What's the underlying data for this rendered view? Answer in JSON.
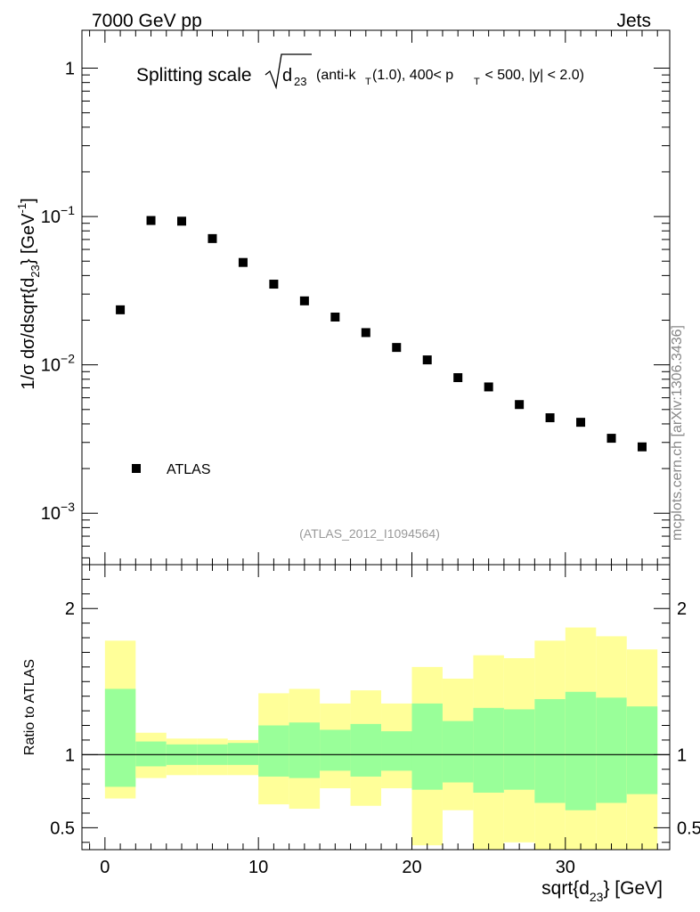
{
  "header": {
    "left": "7000 GeV pp",
    "right": "Jets"
  },
  "title": {
    "main": "Splitting scale",
    "sqrt_sub_base": "d",
    "sqrt_sub_index": "23",
    "detail_1": "(anti-k",
    "detail_1_sub": "T",
    "detail_2": "(1.0), 400< p",
    "detail_2_sub": "T",
    "detail_3": " < 500, |y| < 2.0)"
  },
  "watermark": "mcplots.cern.ch [arXiv:1306.3436]",
  "analysis_id": "(ATLAS_2012_I1094564)",
  "legend": {
    "label": "ATLAS",
    "position": "bottom-left"
  },
  "ylabel_main": {
    "prefix": "1/σ dσ/dsqrt{d",
    "sub": "23",
    "suffix": "} [GeV",
    "sup": "-1",
    "end": "]"
  },
  "ylabel_ratio": "Ratio to ATLAS",
  "xlabel": {
    "prefix": "sqrt{d",
    "sub": "23",
    "suffix": "} [GeV]"
  },
  "colors": {
    "green_band": "#99ff99",
    "yellow_band": "#ffff99",
    "marker": "#000000"
  },
  "chart_data": [
    {
      "type": "scatter",
      "title": "Splitting scale sqrt(d23) (anti-kT(1.0), 400< pT < 500, |y| < 2.0)",
      "yscale": "log",
      "xlim": [
        -1.5,
        36.8
      ],
      "ylim": [
        0.00045,
        1.8
      ],
      "x": [
        1,
        3,
        5,
        7,
        9,
        11,
        13,
        15,
        17,
        19,
        21,
        23,
        25,
        27,
        29,
        31,
        33,
        35
      ],
      "values": [
        0.0235,
        0.094,
        0.093,
        0.071,
        0.049,
        0.035,
        0.027,
        0.021,
        0.0165,
        0.0131,
        0.0108,
        0.0082,
        0.0071,
        0.0054,
        0.0044,
        0.0041,
        0.0032,
        0.0028
      ],
      "series": [
        {
          "name": "ATLAS"
        }
      ],
      "yticks": [
        0.001,
        0.01,
        0.1,
        1
      ],
      "ytick_labels": [
        {
          "base": "10",
          "exp": "−3"
        },
        {
          "base": "10",
          "exp": "−2"
        },
        {
          "base": "10",
          "exp": "−1"
        },
        {
          "base": "1",
          "exp": ""
        }
      ]
    },
    {
      "type": "area",
      "title": "Ratio to ATLAS",
      "xlim": [
        -1.5,
        36.8
      ],
      "ylim": [
        0.35,
        2.3
      ],
      "xticks": [
        0,
        10,
        20,
        30
      ],
      "yticks": [
        0.5,
        1,
        2
      ],
      "ytick_labels": [
        "0.5",
        "1",
        "2"
      ],
      "bin_edges": [
        0,
        2,
        4,
        6,
        8,
        10,
        12,
        14,
        16,
        18,
        20,
        22,
        24,
        26,
        28,
        30,
        32,
        34,
        36
      ],
      "yellow_upper": [
        1.78,
        1.15,
        1.11,
        1.11,
        1.1,
        1.42,
        1.45,
        1.35,
        1.44,
        1.35,
        1.6,
        1.52,
        1.68,
        1.66,
        1.78,
        1.87,
        1.81,
        1.72
      ],
      "yellow_lower": [
        0.7,
        0.84,
        0.86,
        0.86,
        0.86,
        0.66,
        0.63,
        0.77,
        0.65,
        0.77,
        0.38,
        0.62,
        0.32,
        0.4,
        0.34,
        0.33,
        0.32,
        0.32
      ],
      "green_upper": [
        1.45,
        1.09,
        1.07,
        1.07,
        1.08,
        1.2,
        1.22,
        1.17,
        1.21,
        1.16,
        1.35,
        1.23,
        1.32,
        1.31,
        1.38,
        1.43,
        1.39,
        1.33
      ],
      "green_lower": [
        0.78,
        0.92,
        0.93,
        0.93,
        0.93,
        0.85,
        0.84,
        0.89,
        0.85,
        0.89,
        0.76,
        0.81,
        0.74,
        0.76,
        0.67,
        0.62,
        0.67,
        0.73
      ],
      "reference": 1.0
    }
  ]
}
